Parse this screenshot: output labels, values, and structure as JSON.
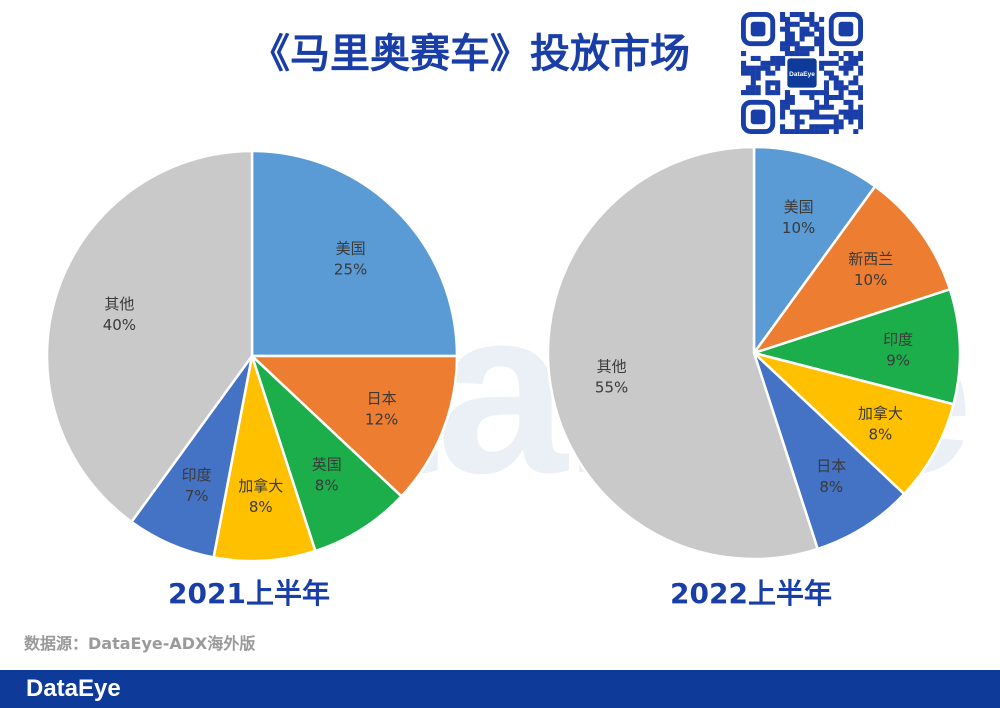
{
  "page_title": "《马里奥赛车》投放市场",
  "source_text": "数据源：DataEye-ADX海外版",
  "brand": "DataEye",
  "watermark_text": "DataEye",
  "qr_logo_text": "DataEye",
  "colors": {
    "title": "#1a3ea8",
    "footer": "#0e3a9a",
    "blue_light": "#5b9bd5",
    "orange": "#ed7d31",
    "green": "#1cae4a",
    "yellow": "#ffc000",
    "blue_dark": "#4472c4",
    "gray": "#c9c9c9"
  },
  "chart_data": [
    {
      "type": "pie",
      "title": "2021上半年",
      "slices": [
        {
          "label": "美国",
          "value": 25,
          "display": "25%",
          "color": "#5b9bd5"
        },
        {
          "label": "日本",
          "value": 12,
          "display": "12%",
          "color": "#ed7d31"
        },
        {
          "label": "英国",
          "value": 8,
          "display": "8%",
          "color": "#1cae4a"
        },
        {
          "label": "加拿大",
          "value": 8,
          "display": "8%",
          "color": "#ffc000"
        },
        {
          "label": "印度",
          "value": 7,
          "display": "7%",
          "color": "#4472c4"
        },
        {
          "label": "其他",
          "value": 40,
          "display": "40%",
          "color": "#c9c9c9"
        }
      ]
    },
    {
      "type": "pie",
      "title": "2022上半年",
      "slices": [
        {
          "label": "美国",
          "value": 10,
          "display": "10%",
          "color": "#5b9bd5"
        },
        {
          "label": "新西兰",
          "value": 10,
          "display": "10%",
          "color": "#ed7d31"
        },
        {
          "label": "印度",
          "value": 9,
          "display": "9%",
          "color": "#1cae4a"
        },
        {
          "label": "加拿大",
          "value": 8,
          "display": "8%",
          "color": "#ffc000"
        },
        {
          "label": "日本",
          "value": 8,
          "display": "8%",
          "color": "#4472c4"
        },
        {
          "label": "其他",
          "value": 55,
          "display": "55%",
          "color": "#c9c9c9"
        }
      ]
    }
  ]
}
